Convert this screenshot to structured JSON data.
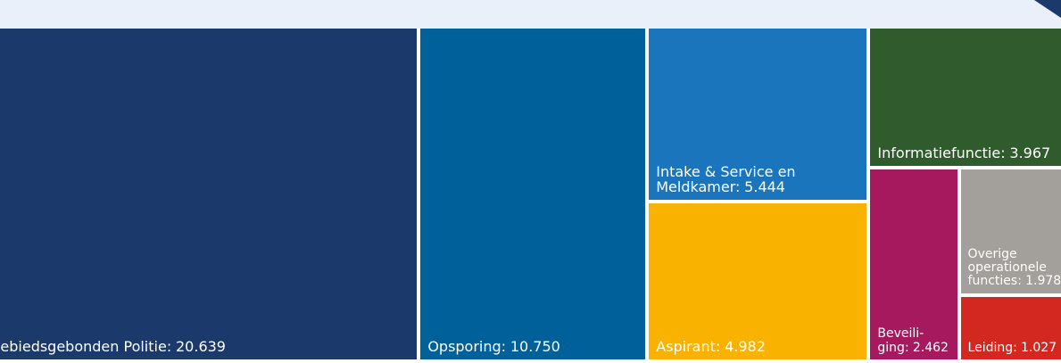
{
  "chart_data": {
    "type": "treemap",
    "categories": [
      "Gebiedsgebonden Politie:",
      "Opsporing:",
      "Intake & Service en Meldkamer:",
      "Aspirant:",
      "Informatiefunctie:",
      "Beveili­ging:",
      "Overige operatio­nele functies:",
      "Leiding:"
    ],
    "values": [
      20639,
      10750,
      5444,
      4982,
      3967,
      2462,
      1978,
      1027
    ],
    "value_labels": [
      "20.639",
      "10.750",
      "5.444",
      "4.982",
      "3.967",
      "2.462",
      "1.978",
      "1.027"
    ],
    "colors": [
      "#1b3a6b",
      "#00609a",
      "#1b75bc",
      "#f9b200",
      "#2f5b2d",
      "#a6195e",
      "#a39f9b",
      "#d3281f"
    ]
  }
}
